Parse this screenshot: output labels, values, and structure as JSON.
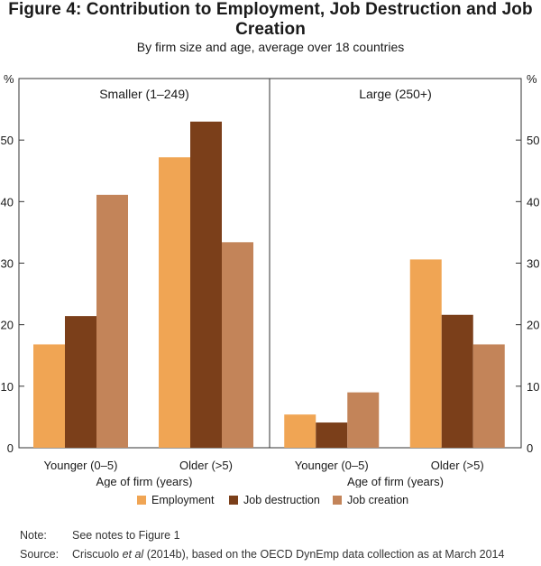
{
  "title": "Figure 4: Contribution to Employment, Job Destruction and Job Creation",
  "subtitle": "By firm size and age, average over 18 countries",
  "colors": {
    "employment": "#F0A554",
    "job_destruction": "#7B3F1A",
    "job_creation": "#C38459"
  },
  "chart_data": {
    "type": "bar",
    "y_unit_label": "%",
    "ylim": [
      0,
      60
    ],
    "yticks": [
      0,
      10,
      20,
      30,
      40,
      50
    ],
    "xlabel": "Age of firm (years)",
    "legend_position": "bottom",
    "series_names": [
      "Employment",
      "Job destruction",
      "Job creation"
    ],
    "panels": [
      {
        "label": "Smaller (1–249)",
        "categories": [
          "Younger (0–5)",
          "Older (>5)"
        ],
        "series": [
          {
            "name": "Employment",
            "values": [
              16.8,
              47.2
            ]
          },
          {
            "name": "Job destruction",
            "values": [
              21.4,
              53.0
            ]
          },
          {
            "name": "Job creation",
            "values": [
              41.1,
              33.4
            ]
          }
        ]
      },
      {
        "label": "Large (250+)",
        "categories": [
          "Younger (0–5)",
          "Older (>5)"
        ],
        "series": [
          {
            "name": "Employment",
            "values": [
              5.4,
              30.6
            ]
          },
          {
            "name": "Job destruction",
            "values": [
              4.1,
              21.6
            ]
          },
          {
            "name": "Job creation",
            "values": [
              9.0,
              16.8
            ]
          }
        ]
      }
    ]
  },
  "notes": {
    "note_label": "Note:",
    "note_text": "See notes to Figure 1",
    "source_label": "Source:",
    "source_pre": "Criscuolo ",
    "source_italic": "et al",
    "source_post": " (2014b), based on the OECD DynEmp data collection as at March 2014"
  }
}
